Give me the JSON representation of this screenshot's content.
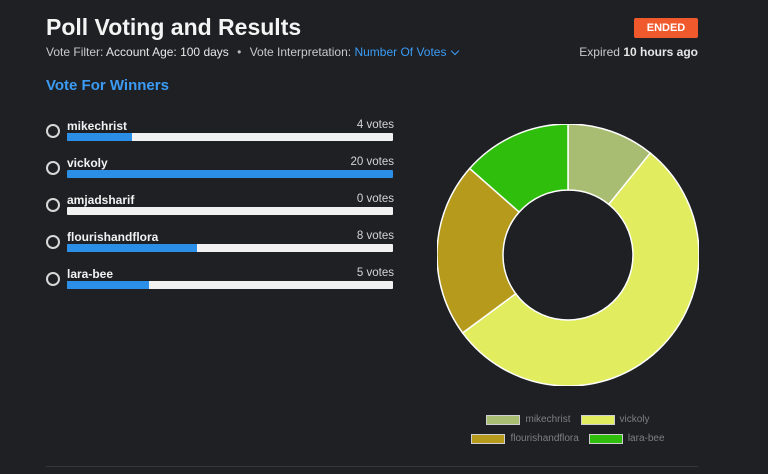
{
  "header": {
    "title": "Poll Voting and Results",
    "status_badge": "ENDED",
    "filter_label": "Vote Filter:",
    "filter_value": "Account Age: 100 days",
    "interpretation_label": "Vote Interpretation:",
    "interpretation_value": "Number Of Votes",
    "expired_label": "Expired",
    "expired_value": "10 hours ago"
  },
  "section_title": "Vote For Winners",
  "options": [
    {
      "name": "mikechrist",
      "votes_label": "4 votes",
      "votes": 4
    },
    {
      "name": "vickoly",
      "votes_label": "20 votes",
      "votes": 20
    },
    {
      "name": "amjadsharif",
      "votes_label": "0 votes",
      "votes": 0
    },
    {
      "name": "flourishandflora",
      "votes_label": "8 votes",
      "votes": 8
    },
    {
      "name": "lara-bee",
      "votes_label": "5 votes",
      "votes": 5
    }
  ],
  "colors": {
    "accent": "#3b9bf5",
    "badge": "#f0592c",
    "bar_fill": "#2b8fe7"
  },
  "chart_data": {
    "type": "pie",
    "variant": "doughnut",
    "categories": [
      "mikechrist",
      "vickoly",
      "flourishandflora",
      "lara-bee"
    ],
    "values": [
      4,
      20,
      8,
      5
    ],
    "colors": [
      "#a8bd72",
      "#e1ec5e",
      "#b59a1b",
      "#2fbe0b"
    ],
    "legend": {
      "placement": "bottom",
      "rows": [
        [
          "mikechrist",
          "vickoly"
        ],
        [
          "flourishandflora",
          "lara-bee"
        ]
      ]
    }
  }
}
